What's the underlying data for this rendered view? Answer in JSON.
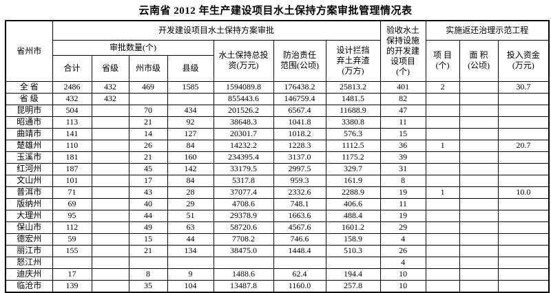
{
  "title": "云南省 2012 年生产建设项目水土保持方案审批管理情况表",
  "table": {
    "header": {
      "province": "省州市",
      "group_approval": "开发建设项目水土保持方案审批",
      "group_acceptance": "验收水土\n保持设施\n的开发建\n设项目\n(个)",
      "group_demo": "实施返还治理示范工程",
      "approval_count": "审批数量(个)",
      "sub_total": "合计",
      "sub_provincial": "省级",
      "sub_prefecture": "州市级",
      "sub_county": "县级",
      "investment": "水土保持总投\n资(万元)",
      "prevention": "防治责任\n范围(公顷)",
      "retaining": "设计拦挡\n弃土弃渣\n(万方)",
      "demo_project": "项 目\n(个)",
      "demo_area": "面 积\n(公顷)",
      "demo_funds": "投入资金\n(万元)"
    },
    "rows": [
      {
        "name": "全 省",
        "values": [
          "2486",
          "432",
          "469",
          "1585",
          "1594089.8",
          "176438.2",
          "25813.2",
          "401",
          "2",
          "",
          "30.7"
        ]
      },
      {
        "name": "省 级",
        "values": [
          "432",
          "432",
          "",
          "",
          "855443.6",
          "146759.4",
          "1481.5",
          "82",
          "",
          "",
          ""
        ]
      },
      {
        "name": "昆明市",
        "values": [
          "504",
          "",
          "70",
          "434",
          "201526.2",
          "6567.4",
          "11688.9",
          "47",
          "",
          "",
          ""
        ]
      },
      {
        "name": "昭通市",
        "values": [
          "113",
          "",
          "21",
          "92",
          "38648.3",
          "1041.8",
          "3380.8",
          "11",
          "",
          "",
          ""
        ]
      },
      {
        "name": "曲靖市",
        "values": [
          "141",
          "",
          "14",
          "127",
          "20301.7",
          "1018.2",
          "576.3",
          "15",
          "",
          "",
          ""
        ]
      },
      {
        "name": "楚雄州",
        "values": [
          "110",
          "",
          "26",
          "84",
          "14232.2",
          "1228.3",
          "1112.5",
          "36",
          "1",
          "",
          "20.7"
        ]
      },
      {
        "name": "玉溪市",
        "values": [
          "181",
          "",
          "21",
          "160",
          "234395.4",
          "3137.0",
          "1175.2",
          "39",
          "",
          "",
          ""
        ]
      },
      {
        "name": "红河州",
        "values": [
          "187",
          "",
          "45",
          "142",
          "33179.5",
          "2997.5",
          "329.7",
          "31",
          "",
          "",
          ""
        ]
      },
      {
        "name": "文山州",
        "values": [
          "101",
          "",
          "17",
          "84",
          "5317.8",
          "959.3",
          "161.9",
          "8",
          "",
          "",
          ""
        ]
      },
      {
        "name": "普洱市",
        "values": [
          "71",
          "",
          "43",
          "28",
          "37077.4",
          "2332.6",
          "2288.9",
          "19",
          "1",
          "",
          "10.0"
        ]
      },
      {
        "name": "版纳州",
        "values": [
          "69",
          "",
          "40",
          "29",
          "4708.6",
          "748.1",
          "406.6",
          "11",
          "",
          "",
          ""
        ]
      },
      {
        "name": "大理州",
        "values": [
          "95",
          "",
          "44",
          "51",
          "29378.9",
          "1663.6",
          "488.4",
          "19",
          "",
          "",
          ""
        ]
      },
      {
        "name": "保山市",
        "values": [
          "112",
          "",
          "49",
          "63",
          "58720.6",
          "4567.6",
          "1601.2",
          "29",
          "",
          "",
          ""
        ]
      },
      {
        "name": "德宏州",
        "values": [
          "59",
          "",
          "15",
          "44",
          "7708.2",
          "746.6",
          "158.9",
          "4",
          "",
          "",
          ""
        ]
      },
      {
        "name": "丽江市",
        "values": [
          "155",
          "",
          "21",
          "134",
          "38475.0",
          "1448.4",
          "510.3",
          "26",
          "",
          "",
          ""
        ]
      },
      {
        "name": "怒江州",
        "values": [
          "",
          "",
          "",
          "",
          "",
          "",
          "",
          "4",
          "",
          "",
          ""
        ]
      },
      {
        "name": "迪庆州",
        "values": [
          "17",
          "",
          "8",
          "9",
          "1488.6",
          "62.4",
          "194.4",
          "10",
          "",
          "",
          ""
        ]
      },
      {
        "name": "临沧市",
        "values": [
          "139",
          "",
          "35",
          "104",
          "13487.8",
          "1160.0",
          "257.8",
          "10",
          "",
          "",
          ""
        ]
      }
    ]
  }
}
